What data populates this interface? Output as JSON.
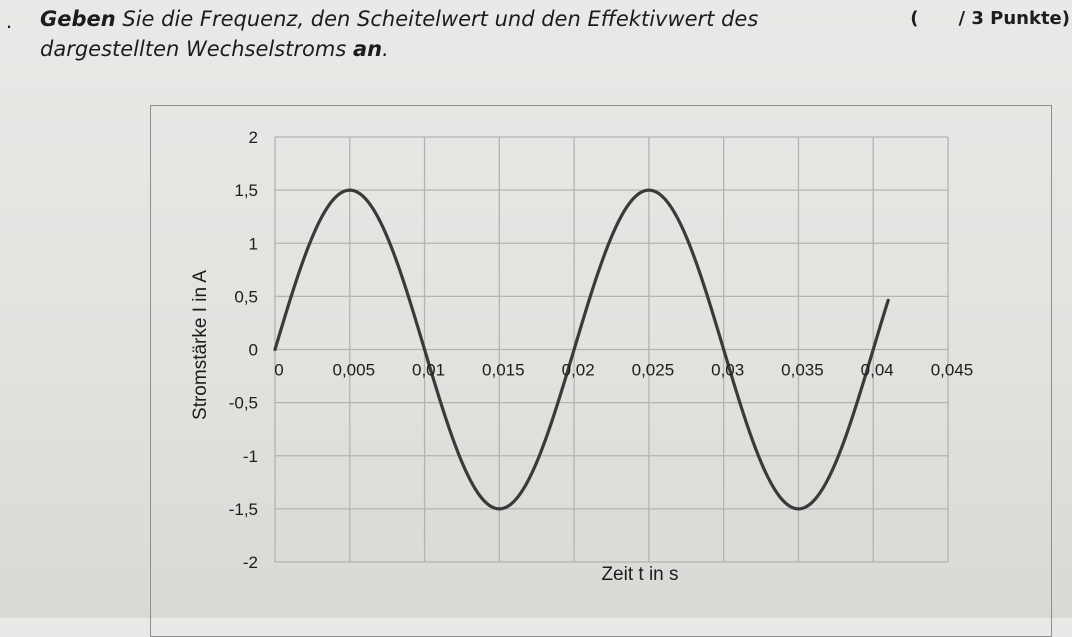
{
  "task": {
    "line1_bold": "Geben",
    "line1_rest": " Sie die Frequenz, den Scheitelwert und den Effektivwert des",
    "line2_start": "dargestellten Wechselstroms ",
    "line2_bold": "an",
    "line2_end": ".",
    "points_open": "(",
    "points_label": "/ 3 Punkte)"
  },
  "chart_data": {
    "type": "line",
    "xlabel": "Zeit t in s",
    "ylabel": "Stromstärke I in A",
    "xlim": [
      0,
      0.045
    ],
    "ylim": [
      -2,
      2
    ],
    "x_ticks": [
      "0",
      "0,005",
      "0,01",
      "0,015",
      "0,02",
      "0,025",
      "0,03",
      "0,035",
      "0,04",
      "0,045"
    ],
    "y_ticks": [
      "2",
      "1,5",
      "1",
      "0,5",
      "0",
      "-0,5",
      "-1",
      "-1,5",
      "-2"
    ],
    "grid": true,
    "series": [
      {
        "color": "#3a3a3a",
        "x": [
          0,
          0.0025,
          0.005,
          0.0075,
          0.01,
          0.0125,
          0.015,
          0.0175,
          0.02,
          0.0225,
          0.025,
          0.0275,
          0.03,
          0.0325,
          0.035,
          0.0375,
          0.04,
          0.041
        ],
        "y": [
          0,
          1.06,
          1.5,
          1.06,
          0,
          -1.06,
          -1.5,
          -1.06,
          0,
          1.06,
          1.5,
          1.06,
          0,
          -1.06,
          -1.5,
          -1.06,
          0,
          0.45
        ]
      }
    ]
  }
}
